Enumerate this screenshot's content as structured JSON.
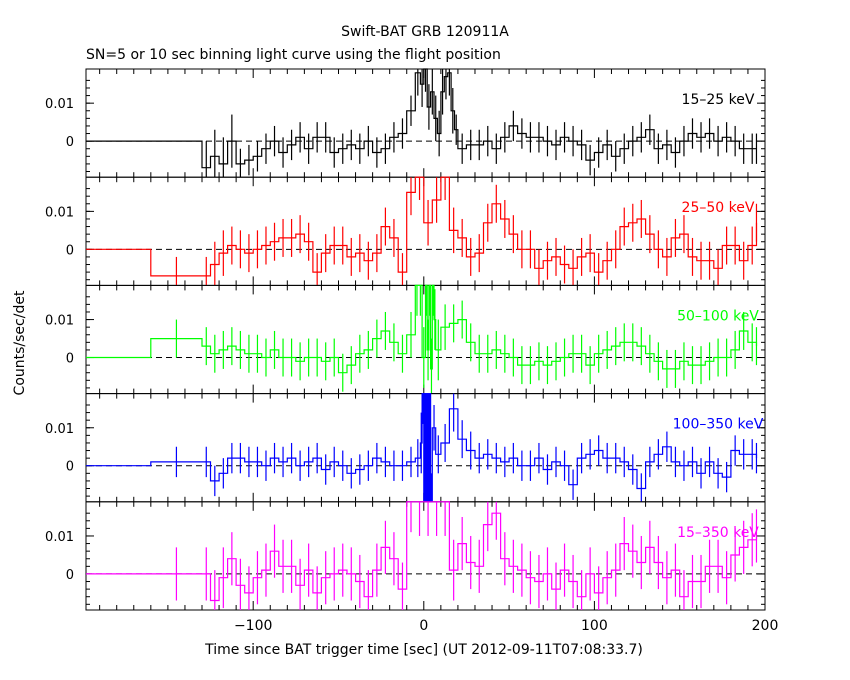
{
  "chart_data": {
    "type": "line",
    "title": "Swift-BAT GRB 120911A",
    "subtitle": "SN=5 or 10 sec binning light curve using the flight position",
    "xlabel": "Time since BAT trigger time [sec] (UT 2012-09-11T07:08:33.7)",
    "ylabel": "Counts/sec/det",
    "xlim": [
      -198,
      200
    ],
    "ylim": [
      -0.0095,
      0.019
    ],
    "x_ticks": [
      -100,
      0,
      100,
      200
    ],
    "x_tick_labels": [
      "−100",
      "0",
      "100",
      "200"
    ],
    "y_ticks": [
      0,
      0.01
    ],
    "y_tick_labels": [
      "0",
      "0.01"
    ],
    "reference_line": 0,
    "panels": [
      {
        "name": "15–25 keV",
        "color": "#000000",
        "x": [
          -198,
          -130,
          -125,
          -120,
          -115,
          -110,
          -105,
          -100,
          -95,
          -90,
          -85,
          -80,
          -75,
          -70,
          -65,
          -60,
          -55,
          -50,
          -45,
          -40,
          -35,
          -30,
          -25,
          -20,
          -15,
          -10,
          -5,
          -2,
          0,
          2,
          4,
          6,
          8,
          10,
          12,
          14,
          16,
          18,
          20,
          25,
          30,
          35,
          40,
          45,
          50,
          55,
          60,
          65,
          70,
          75,
          80,
          85,
          90,
          95,
          100,
          105,
          110,
          115,
          120,
          125,
          130,
          135,
          140,
          145,
          150,
          155,
          160,
          165,
          170,
          175,
          180,
          185,
          190,
          195
        ],
        "y": [
          0,
          -0.007,
          -0.004,
          -0.006,
          0,
          -0.006,
          -0.005,
          -0.004,
          -0.002,
          0,
          -0.003,
          -0.001,
          0.001,
          -0.002,
          0.001,
          0.001,
          -0.003,
          -0.002,
          -0.001,
          -0.002,
          0,
          -0.003,
          -0.002,
          0.001,
          0.002,
          0.008,
          0.018,
          0.015,
          0.019,
          0.009,
          0.013,
          0.006,
          0.002,
          0.013,
          0.017,
          0.018,
          0.008,
          0.003,
          -0.002,
          -0.001,
          -0.001,
          0,
          -0.002,
          0.001,
          0.004,
          0.002,
          0.001,
          0.001,
          0,
          -0.001,
          0.001,
          0,
          -0.001,
          -0.005,
          -0.003,
          -0.001,
          -0.004,
          -0.002,
          0,
          0.001,
          0.003,
          -0.002,
          -0.001,
          -0.003,
          0,
          0.002,
          0.001,
          0.002,
          0,
          0.001,
          0,
          -0.002,
          -0.002,
          -0.002
        ],
        "err": [
          0,
          0.007,
          0.007,
          0.007,
          0.007,
          0.004,
          0.004,
          0.004,
          0.004,
          0.004,
          0.004,
          0.004,
          0.004,
          0.004,
          0.004,
          0.004,
          0.004,
          0.004,
          0.004,
          0.004,
          0.004,
          0.004,
          0.004,
          0.004,
          0.004,
          0.004,
          0.006,
          0.006,
          0.006,
          0.006,
          0.006,
          0.006,
          0.006,
          0.006,
          0.006,
          0.006,
          0.006,
          0.004,
          0.004,
          0.004,
          0.004,
          0.004,
          0.004,
          0.004,
          0.004,
          0.004,
          0.004,
          0.004,
          0.004,
          0.004,
          0.004,
          0.004,
          0.004,
          0.004,
          0.004,
          0.004,
          0.004,
          0.004,
          0.004,
          0.004,
          0.004,
          0.004,
          0.004,
          0.004,
          0.004,
          0.004,
          0.004,
          0.004,
          0.004,
          0.004,
          0.004,
          0.004,
          0.004,
          0.004
        ]
      },
      {
        "name": "25–50 keV",
        "color": "#ff0000",
        "x": [
          -198,
          -160,
          -130,
          -125,
          -120,
          -115,
          -110,
          -105,
          -100,
          -95,
          -90,
          -85,
          -80,
          -75,
          -70,
          -65,
          -60,
          -55,
          -50,
          -45,
          -40,
          -35,
          -30,
          -25,
          -20,
          -15,
          -10,
          -5,
          0,
          5,
          10,
          15,
          20,
          25,
          30,
          35,
          40,
          45,
          50,
          55,
          60,
          65,
          70,
          75,
          80,
          85,
          90,
          95,
          100,
          105,
          110,
          115,
          120,
          125,
          130,
          135,
          140,
          145,
          150,
          155,
          160,
          165,
          170,
          175,
          180,
          185,
          190,
          195
        ],
        "y": [
          0,
          -0.007,
          -0.007,
          -0.004,
          -0.001,
          0.001,
          0,
          -0.001,
          0,
          0.001,
          0.002,
          0.003,
          0.003,
          0.004,
          0.002,
          -0.006,
          -0.001,
          0.001,
          0.001,
          -0.002,
          -0.001,
          -0.003,
          -0.001,
          0.006,
          0.003,
          -0.006,
          0.015,
          0.019,
          0.007,
          0.013,
          0.019,
          0.005,
          0.003,
          -0.002,
          -0.001,
          0.007,
          0.012,
          0.008,
          0.004,
          0,
          0,
          -0.005,
          -0.003,
          -0.002,
          -0.004,
          -0.005,
          -0.002,
          -0.001,
          -0.006,
          -0.003,
          0,
          0.006,
          0.007,
          0.008,
          0.004,
          0,
          -0.002,
          0.003,
          0.004,
          -0.002,
          -0.003,
          -0.003,
          -0.005,
          0.001,
          0.001,
          -0.003,
          0.001,
          0.007
        ],
        "err": [
          0,
          0.005,
          0.005,
          0.006,
          0.006,
          0.005,
          0.005,
          0.005,
          0.005,
          0.005,
          0.005,
          0.005,
          0.005,
          0.005,
          0.005,
          0.005,
          0.005,
          0.005,
          0.005,
          0.005,
          0.005,
          0.005,
          0.005,
          0.005,
          0.005,
          0.005,
          0.006,
          0.006,
          0.006,
          0.006,
          0.006,
          0.006,
          0.005,
          0.005,
          0.005,
          0.005,
          0.005,
          0.005,
          0.005,
          0.005,
          0.005,
          0.005,
          0.005,
          0.005,
          0.005,
          0.005,
          0.005,
          0.005,
          0.005,
          0.005,
          0.005,
          0.005,
          0.005,
          0.005,
          0.005,
          0.005,
          0.005,
          0.005,
          0.005,
          0.005,
          0.005,
          0.005,
          0.005,
          0.005,
          0.005,
          0.005,
          0.005,
          0.005
        ]
      },
      {
        "name": "50–100 keV",
        "color": "#00ff00",
        "x": [
          -198,
          -160,
          -130,
          -125,
          -120,
          -115,
          -110,
          -105,
          -100,
          -95,
          -90,
          -85,
          -80,
          -75,
          -70,
          -65,
          -60,
          -55,
          -50,
          -45,
          -40,
          -35,
          -30,
          -25,
          -20,
          -15,
          -10,
          -5,
          -3,
          -1,
          1,
          2,
          3,
          4,
          5,
          6,
          7,
          10,
          15,
          20,
          25,
          30,
          35,
          40,
          45,
          50,
          55,
          60,
          65,
          70,
          75,
          80,
          85,
          90,
          95,
          100,
          105,
          110,
          115,
          120,
          125,
          130,
          135,
          140,
          145,
          150,
          155,
          160,
          165,
          170,
          175,
          180,
          185,
          190,
          195
        ],
        "y": [
          0,
          0.005,
          0.003,
          0.001,
          0.002,
          0.003,
          0.002,
          0.001,
          0.001,
          0,
          0.002,
          0,
          0,
          -0.001,
          0,
          0,
          -0.001,
          0,
          -0.004,
          -0.002,
          0.001,
          0.002,
          0.005,
          0.007,
          0.004,
          0.001,
          0.006,
          0.019,
          0.019,
          0,
          0.019,
          0.002,
          0.019,
          -0.003,
          0.019,
          0.01,
          0.002,
          0.008,
          0.009,
          0.01,
          0.004,
          0.001,
          0.001,
          0.002,
          0.001,
          0,
          -0.002,
          -0.002,
          -0.001,
          -0.002,
          -0.001,
          0,
          0.001,
          0.001,
          -0.002,
          0.001,
          0.002,
          0.003,
          0.004,
          0.004,
          0.003,
          0.001,
          -0.001,
          -0.003,
          -0.003,
          -0.001,
          -0.002,
          -0.002,
          -0.001,
          0,
          0,
          0.002,
          0.007,
          0.004,
          0.003
        ],
        "err": [
          0,
          0.005,
          0.005,
          0.005,
          0.005,
          0.005,
          0.005,
          0.005,
          0.005,
          0.005,
          0.005,
          0.005,
          0.005,
          0.005,
          0.005,
          0.005,
          0.005,
          0.005,
          0.005,
          0.005,
          0.005,
          0.005,
          0.005,
          0.005,
          0.005,
          0.005,
          0.006,
          0.008,
          0.008,
          0.008,
          0.008,
          0.008,
          0.008,
          0.008,
          0.008,
          0.008,
          0.008,
          0.006,
          0.005,
          0.005,
          0.005,
          0.005,
          0.005,
          0.005,
          0.005,
          0.005,
          0.005,
          0.005,
          0.005,
          0.005,
          0.005,
          0.005,
          0.005,
          0.005,
          0.005,
          0.005,
          0.005,
          0.005,
          0.005,
          0.005,
          0.005,
          0.005,
          0.005,
          0.005,
          0.005,
          0.005,
          0.005,
          0.005,
          0.005,
          0.005,
          0.005,
          0.005,
          0.005,
          0.005,
          0.005
        ]
      },
      {
        "name": "100–350 keV",
        "color": "#0000ff",
        "x": [
          -198,
          -160,
          -130,
          -125,
          -120,
          -115,
          -110,
          -105,
          -100,
          -95,
          -90,
          -85,
          -80,
          -75,
          -70,
          -65,
          -60,
          -55,
          -50,
          -45,
          -40,
          -35,
          -30,
          -25,
          -20,
          -15,
          -10,
          -5,
          -2,
          -1,
          0,
          0.5,
          1,
          1.5,
          2,
          2.5,
          3,
          3.5,
          4,
          5,
          7,
          10,
          15,
          20,
          25,
          30,
          35,
          40,
          45,
          50,
          55,
          60,
          65,
          70,
          75,
          80,
          85,
          90,
          95,
          100,
          105,
          110,
          115,
          120,
          125,
          130,
          135,
          140,
          145,
          150,
          155,
          160,
          165,
          170,
          175,
          180,
          185,
          190,
          195
        ],
        "y": [
          0,
          0.001,
          0.001,
          -0.004,
          -0.002,
          0.002,
          0.002,
          0.001,
          0.001,
          0,
          0.002,
          0.001,
          0.002,
          0,
          0.001,
          0.002,
          -0.001,
          0.001,
          0,
          -0.002,
          -0.001,
          0,
          0.002,
          0.001,
          0,
          0,
          0.001,
          0.002,
          0.006,
          0.019,
          -0.01,
          0.019,
          -0.01,
          0.019,
          -0.01,
          0.019,
          -0.01,
          0.019,
          -0.01,
          0.01,
          0.003,
          0.006,
          0.015,
          0.007,
          0.004,
          0.002,
          0.003,
          0.002,
          0.001,
          0.002,
          0,
          0,
          0.002,
          -0.001,
          0.001,
          0,
          -0.005,
          0.002,
          0.003,
          0.004,
          0.002,
          0.002,
          0.001,
          -0.001,
          -0.006,
          0.001,
          0.003,
          0.005,
          0.001,
          0,
          0.001,
          -0.002,
          0.001,
          -0.002,
          -0.003,
          0.004,
          0.003,
          0.003,
          0.002
        ],
        "err": [
          0,
          0.004,
          0.004,
          0.004,
          0.004,
          0.004,
          0.004,
          0.004,
          0.004,
          0.004,
          0.004,
          0.004,
          0.004,
          0.004,
          0.004,
          0.004,
          0.004,
          0.004,
          0.004,
          0.004,
          0.004,
          0.004,
          0.004,
          0.004,
          0.004,
          0.004,
          0.004,
          0.005,
          0.008,
          0.008,
          0.008,
          0.008,
          0.008,
          0.008,
          0.008,
          0.008,
          0.008,
          0.008,
          0.008,
          0.006,
          0.005,
          0.005,
          0.006,
          0.005,
          0.005,
          0.004,
          0.004,
          0.004,
          0.004,
          0.004,
          0.004,
          0.004,
          0.004,
          0.004,
          0.004,
          0.004,
          0.004,
          0.004,
          0.004,
          0.004,
          0.004,
          0.004,
          0.004,
          0.004,
          0.004,
          0.004,
          0.004,
          0.004,
          0.004,
          0.004,
          0.004,
          0.004,
          0.004,
          0.004,
          0.004,
          0.004,
          0.004,
          0.004,
          0.004
        ]
      },
      {
        "name": "15–350 keV",
        "color": "#ff00ff",
        "x": [
          -198,
          -160,
          -130,
          -125,
          -120,
          -115,
          -110,
          -105,
          -100,
          -95,
          -90,
          -85,
          -80,
          -75,
          -70,
          -65,
          -60,
          -55,
          -50,
          -45,
          -40,
          -35,
          -30,
          -25,
          -20,
          -15,
          -10,
          -5,
          0,
          5,
          10,
          15,
          20,
          25,
          30,
          35,
          40,
          45,
          50,
          55,
          60,
          65,
          70,
          75,
          80,
          85,
          90,
          95,
          100,
          105,
          110,
          115,
          120,
          125,
          130,
          135,
          140,
          145,
          150,
          155,
          160,
          165,
          170,
          175,
          180,
          185,
          190,
          195
        ],
        "y": [
          0,
          0,
          0,
          -0.007,
          -0.001,
          0.004,
          -0.003,
          -0.005,
          -0.001,
          0.001,
          0.006,
          0.002,
          0.002,
          -0.003,
          0.001,
          -0.005,
          -0.001,
          0,
          0.001,
          0,
          -0.002,
          -0.006,
          0.001,
          0.007,
          0.004,
          -0.004,
          0.019,
          0.019,
          0.019,
          0.019,
          0.019,
          0.001,
          0.008,
          0.003,
          0.002,
          0.013,
          0.016,
          0.004,
          0.002,
          0.001,
          -0.001,
          -0.002,
          0,
          -0.004,
          0.001,
          -0.002,
          -0.006,
          0,
          -0.005,
          -0.001,
          0.001,
          0.008,
          0.006,
          0.003,
          0.007,
          0.003,
          -0.001,
          0.001,
          -0.006,
          -0.002,
          -0.002,
          0.002,
          0.002,
          -0.001,
          0.005,
          0.007,
          0.009,
          0.01
        ],
        "err": [
          0,
          0.007,
          0.007,
          0.008,
          0.008,
          0.007,
          0.007,
          0.007,
          0.007,
          0.007,
          0.007,
          0.007,
          0.007,
          0.007,
          0.007,
          0.007,
          0.007,
          0.007,
          0.007,
          0.007,
          0.007,
          0.007,
          0.007,
          0.007,
          0.007,
          0.007,
          0.008,
          0.009,
          0.009,
          0.009,
          0.009,
          0.008,
          0.007,
          0.007,
          0.007,
          0.007,
          0.007,
          0.007,
          0.007,
          0.007,
          0.007,
          0.007,
          0.007,
          0.007,
          0.007,
          0.007,
          0.007,
          0.007,
          0.007,
          0.007,
          0.007,
          0.007,
          0.007,
          0.007,
          0.007,
          0.007,
          0.007,
          0.007,
          0.007,
          0.007,
          0.007,
          0.007,
          0.007,
          0.007,
          0.007,
          0.007,
          0.007,
          0.007
        ]
      }
    ]
  }
}
